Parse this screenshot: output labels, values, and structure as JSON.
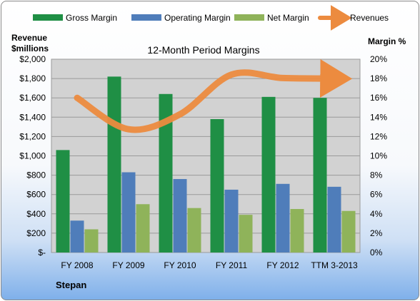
{
  "chart_data": {
    "type": "bar",
    "title": "12-Month Period Margins",
    "company": "Stepan",
    "left_axis_label_line1": "Revenue",
    "left_axis_label_line2": "$millions",
    "right_axis_label": "Margin %",
    "categories": [
      "FY 2008",
      "FY 2009",
      "FY 2010",
      "FY 2011",
      "FY 2012",
      "TTM 3-2013"
    ],
    "series": [
      {
        "name": "Gross Margin",
        "values": [
          10.6,
          18.2,
          16.4,
          13.8,
          16.1,
          16.0
        ],
        "color": "#1f8f45"
      },
      {
        "name": "Operating Margin",
        "values": [
          3.3,
          8.3,
          7.6,
          6.5,
          7.1,
          6.8
        ],
        "color": "#4f7dba"
      },
      {
        "name": "Net Margin",
        "values": [
          2.4,
          5.0,
          4.6,
          3.9,
          4.5,
          4.3
        ],
        "color": "#8fb35a"
      }
    ],
    "line_series": {
      "name": "Revenues",
      "values": [
        1600,
        1275,
        1430,
        1840,
        1805,
        1800
      ],
      "color": "#ec8b3f"
    },
    "left_axis": {
      "ylim": [
        0,
        2000
      ],
      "ticks": [
        "$-",
        "$200",
        "$400",
        "$600",
        "$800",
        "$1,000",
        "$1,200",
        "$1,400",
        "$1,600",
        "$1,800",
        "$2,000"
      ]
    },
    "right_axis": {
      "ylim": [
        0,
        20
      ],
      "ticks": [
        "0%",
        "2%",
        "4%",
        "6%",
        "8%",
        "10%",
        "12%",
        "14%",
        "16%",
        "18%",
        "20%"
      ]
    },
    "legend_position": "top",
    "grid": true,
    "plot_background": "#d2d2d2"
  }
}
